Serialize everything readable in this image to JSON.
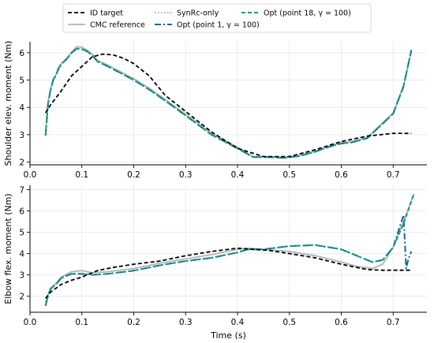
{
  "colors": {
    "id_target": "#000000",
    "cmc_reference": "#b3b3b3",
    "synrc_only": "#cc79a7",
    "opt_point1": "#0f6a96",
    "opt_point18": "#139a7d"
  },
  "legend": {
    "placement": "top-center",
    "entries": [
      {
        "key": "id_target",
        "label": "ID target",
        "style": "dashed"
      },
      {
        "key": "cmc_reference",
        "label": "CMC reference",
        "style": "solid"
      },
      {
        "key": "synrc_only",
        "label": "SynRc-only",
        "style": "dotted"
      },
      {
        "key": "opt_point1",
        "label": "Opt (point 1, γ = 100)",
        "style": "dashdot"
      },
      {
        "key": "opt_point18",
        "label": "Opt (point 18, γ = 100)",
        "style": "dashed"
      }
    ]
  },
  "chart_data": [
    {
      "type": "line",
      "ylabel": "Shoulder elev. moment (Nm)",
      "xlabel": "",
      "xlim": [
        0.0,
        0.765
      ],
      "ylim": [
        1.9,
        6.4
      ],
      "xticks": [
        "0.0",
        "0.1",
        "0.2",
        "0.3",
        "0.4",
        "0.5",
        "0.6",
        "0.7"
      ],
      "yticks": [
        "2",
        "3",
        "4",
        "5",
        "6"
      ],
      "grid": true,
      "series": [
        {
          "key": "cmc_reference",
          "x": [
            0.03,
            0.035,
            0.04,
            0.045,
            0.05,
            0.055,
            0.06,
            0.07,
            0.08,
            0.09,
            0.1,
            0.11,
            0.12,
            0.13,
            0.15,
            0.17,
            0.2,
            0.23,
            0.26,
            0.3,
            0.35,
            0.4,
            0.43,
            0.46,
            0.49,
            0.52,
            0.55,
            0.58,
            0.6,
            0.62,
            0.65,
            0.7,
            0.72,
            0.735
          ],
          "y": [
            3.0,
            4.2,
            4.7,
            5.05,
            5.2,
            5.45,
            5.6,
            5.78,
            6.02,
            6.22,
            6.2,
            6.1,
            5.95,
            5.72,
            5.55,
            5.35,
            5.05,
            4.7,
            4.3,
            3.75,
            3.05,
            2.55,
            2.2,
            2.2,
            2.17,
            2.25,
            2.4,
            2.6,
            2.7,
            2.75,
            2.9,
            3.8,
            4.8,
            6.05
          ]
        },
        {
          "key": "synrc_only",
          "x": [
            0.03,
            0.035,
            0.04,
            0.045,
            0.05,
            0.055,
            0.06,
            0.07,
            0.08,
            0.09,
            0.1,
            0.11,
            0.12,
            0.13,
            0.15,
            0.17,
            0.2,
            0.23,
            0.26,
            0.3,
            0.35,
            0.4,
            0.43,
            0.46,
            0.49,
            0.52,
            0.55,
            0.58,
            0.6,
            0.62,
            0.65,
            0.7,
            0.72,
            0.735
          ],
          "y": [
            2.97,
            4.17,
            4.67,
            5.02,
            5.17,
            5.42,
            5.57,
            5.75,
            5.99,
            6.15,
            6.13,
            6.05,
            5.9,
            5.68,
            5.5,
            5.3,
            5.0,
            4.65,
            4.25,
            3.7,
            3.0,
            2.5,
            2.18,
            2.18,
            2.15,
            2.22,
            2.38,
            2.58,
            2.68,
            2.72,
            2.87,
            3.77,
            4.77,
            6.1
          ]
        },
        {
          "key": "opt_point1",
          "x": [
            0.03,
            0.035,
            0.04,
            0.045,
            0.05,
            0.055,
            0.06,
            0.07,
            0.08,
            0.09,
            0.1,
            0.11,
            0.12,
            0.13,
            0.15,
            0.17,
            0.2,
            0.23,
            0.26,
            0.3,
            0.35,
            0.4,
            0.43,
            0.46,
            0.49,
            0.52,
            0.55,
            0.58,
            0.6,
            0.62,
            0.65,
            0.7,
            0.72,
            0.735
          ],
          "y": [
            2.97,
            4.17,
            4.67,
            5.02,
            5.17,
            5.42,
            5.57,
            5.75,
            5.99,
            6.15,
            6.13,
            6.05,
            5.9,
            5.68,
            5.5,
            5.3,
            5.0,
            4.65,
            4.25,
            3.7,
            3.0,
            2.5,
            2.18,
            2.18,
            2.15,
            2.22,
            2.38,
            2.58,
            2.68,
            2.72,
            2.87,
            3.77,
            4.77,
            6.1
          ]
        },
        {
          "key": "opt_point18",
          "x": [
            0.03,
            0.035,
            0.04,
            0.045,
            0.05,
            0.055,
            0.06,
            0.07,
            0.08,
            0.09,
            0.1,
            0.11,
            0.12,
            0.13,
            0.15,
            0.17,
            0.2,
            0.23,
            0.26,
            0.3,
            0.35,
            0.4,
            0.43,
            0.46,
            0.49,
            0.52,
            0.55,
            0.58,
            0.6,
            0.62,
            0.65,
            0.7,
            0.72,
            0.735
          ],
          "y": [
            2.97,
            4.17,
            4.67,
            5.02,
            5.17,
            5.42,
            5.57,
            5.75,
            5.99,
            6.15,
            6.13,
            6.05,
            5.9,
            5.68,
            5.5,
            5.3,
            5.0,
            4.65,
            4.25,
            3.7,
            3.0,
            2.5,
            2.18,
            2.18,
            2.15,
            2.22,
            2.38,
            2.58,
            2.68,
            2.72,
            2.87,
            3.77,
            4.77,
            6.1
          ]
        },
        {
          "key": "id_target",
          "x": [
            0.03,
            0.04,
            0.06,
            0.08,
            0.1,
            0.12,
            0.14,
            0.16,
            0.18,
            0.2,
            0.23,
            0.26,
            0.3,
            0.35,
            0.4,
            0.45,
            0.5,
            0.55,
            0.6,
            0.65,
            0.7,
            0.735
          ],
          "y": [
            3.8,
            4.1,
            4.6,
            5.15,
            5.5,
            5.85,
            5.95,
            5.92,
            5.8,
            5.6,
            5.15,
            4.45,
            3.85,
            3.1,
            2.5,
            2.2,
            2.2,
            2.45,
            2.75,
            2.95,
            3.05,
            3.05
          ]
        }
      ]
    },
    {
      "type": "line",
      "ylabel": "Elbow flex. moment (Nm)",
      "xlabel": "Time (s)",
      "xlim": [
        0.0,
        0.765
      ],
      "ylim": [
        1.25,
        7.2
      ],
      "xticks": [
        "0.0",
        "0.1",
        "0.2",
        "0.3",
        "0.4",
        "0.5",
        "0.6",
        "0.7"
      ],
      "yticks": [
        "2",
        "3",
        "4",
        "5",
        "6",
        "7"
      ],
      "grid": true,
      "series": [
        {
          "key": "cmc_reference",
          "x": [
            0.03,
            0.035,
            0.04,
            0.05,
            0.06,
            0.08,
            0.1,
            0.12,
            0.15,
            0.2,
            0.25,
            0.3,
            0.35,
            0.4,
            0.42,
            0.45,
            0.5,
            0.55,
            0.6,
            0.63,
            0.66,
            0.68,
            0.7,
            0.72,
            0.74
          ],
          "y": [
            1.6,
            2.1,
            2.4,
            2.6,
            2.9,
            3.15,
            3.2,
            3.1,
            3.15,
            3.3,
            3.55,
            3.75,
            3.95,
            4.2,
            4.25,
            4.2,
            4.1,
            3.9,
            3.6,
            3.4,
            3.3,
            3.5,
            4.3,
            5.5,
            6.8
          ]
        },
        {
          "key": "synrc_only",
          "x": [
            0.03,
            0.035,
            0.04,
            0.05,
            0.06,
            0.08,
            0.1,
            0.12,
            0.15,
            0.2,
            0.25,
            0.3,
            0.35,
            0.4,
            0.42,
            0.45,
            0.5,
            0.55,
            0.6,
            0.63,
            0.66,
            0.68,
            0.7,
            0.72,
            0.74
          ],
          "y": [
            1.55,
            2.05,
            2.35,
            2.55,
            2.85,
            3.05,
            3.05,
            3.0,
            3.05,
            3.2,
            3.45,
            3.65,
            3.8,
            4.05,
            4.2,
            4.2,
            4.35,
            4.4,
            4.2,
            3.9,
            3.6,
            3.7,
            4.3,
            5.4,
            6.8
          ]
        },
        {
          "key": "opt_point1",
          "x": [
            0.03,
            0.035,
            0.04,
            0.05,
            0.06,
            0.08,
            0.1,
            0.12,
            0.15,
            0.2,
            0.25,
            0.3,
            0.35,
            0.4,
            0.42,
            0.45,
            0.5,
            0.55,
            0.6,
            0.63,
            0.66,
            0.68,
            0.7,
            0.72,
            0.725,
            0.73,
            0.735
          ],
          "y": [
            1.55,
            2.05,
            2.35,
            2.55,
            2.85,
            3.05,
            3.05,
            3.0,
            3.05,
            3.2,
            3.45,
            3.65,
            3.8,
            4.05,
            4.2,
            4.2,
            4.35,
            4.4,
            4.2,
            3.9,
            3.6,
            3.7,
            4.3,
            5.8,
            3.3,
            3.8,
            4.1
          ]
        },
        {
          "key": "opt_point18",
          "x": [
            0.03,
            0.035,
            0.04,
            0.05,
            0.06,
            0.08,
            0.1,
            0.12,
            0.15,
            0.2,
            0.25,
            0.3,
            0.35,
            0.4,
            0.42,
            0.45,
            0.5,
            0.55,
            0.6,
            0.63,
            0.66,
            0.68,
            0.7,
            0.72,
            0.74
          ],
          "y": [
            1.55,
            2.05,
            2.35,
            2.55,
            2.85,
            3.05,
            3.05,
            3.0,
            3.05,
            3.2,
            3.45,
            3.65,
            3.8,
            4.05,
            4.2,
            4.2,
            4.35,
            4.4,
            4.2,
            3.9,
            3.6,
            3.7,
            4.3,
            5.4,
            6.8
          ]
        },
        {
          "key": "id_target",
          "x": [
            0.03,
            0.04,
            0.06,
            0.08,
            0.1,
            0.13,
            0.16,
            0.2,
            0.25,
            0.3,
            0.35,
            0.4,
            0.43,
            0.46,
            0.5,
            0.55,
            0.6,
            0.63,
            0.65,
            0.68,
            0.71,
            0.735
          ],
          "y": [
            1.9,
            2.2,
            2.55,
            2.75,
            2.9,
            3.2,
            3.35,
            3.5,
            3.65,
            3.9,
            4.1,
            4.25,
            4.2,
            4.15,
            4.0,
            3.8,
            3.5,
            3.35,
            3.25,
            3.22,
            3.22,
            3.22
          ]
        }
      ]
    }
  ]
}
